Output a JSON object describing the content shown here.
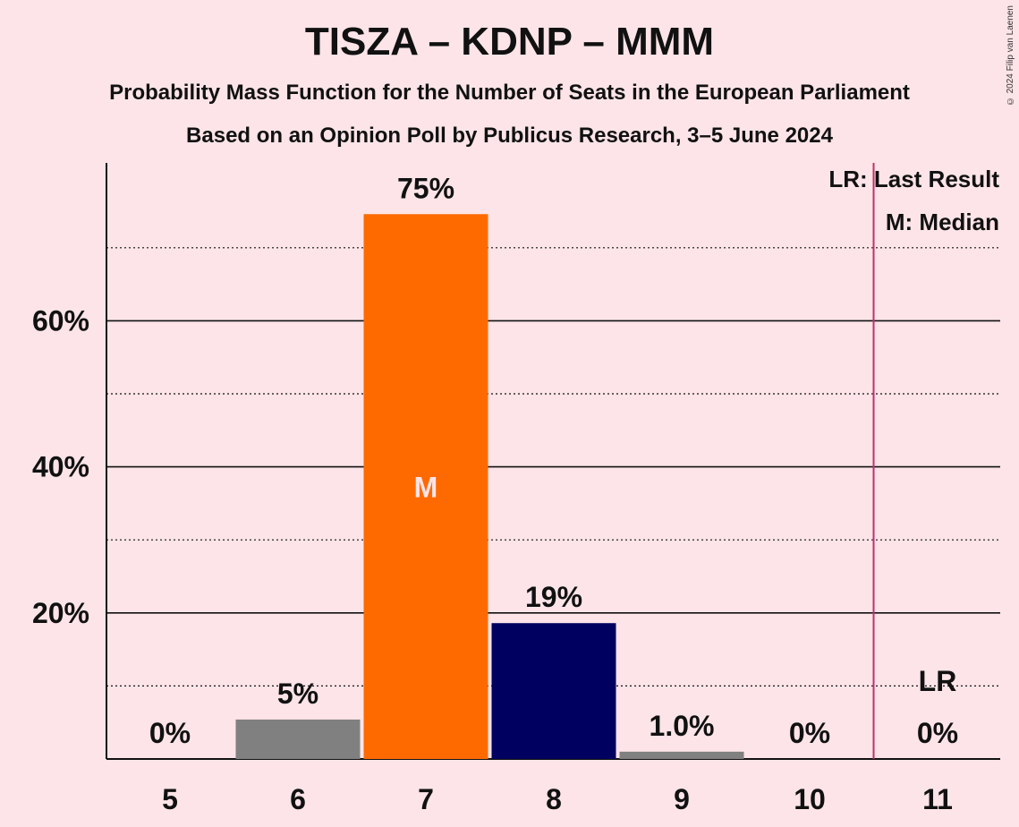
{
  "chart_data": {
    "type": "bar",
    "title": "TISZA – KDNP – MMM",
    "subtitle": "Probability Mass Function for the Number of Seats in the European Parliament",
    "subtitle2": "Based on an Opinion Poll by Publicus Research, 3–5 June 2024",
    "copyright": "© 2024 Filip van Laenen",
    "categories": [
      "5",
      "6",
      "7",
      "8",
      "9",
      "10",
      "11"
    ],
    "values": [
      0,
      5.4,
      74.6,
      18.6,
      1.0,
      0,
      0
    ],
    "labels": [
      "0%",
      "5%",
      "75%",
      "19%",
      "1.0%",
      "0%",
      "0%"
    ],
    "bar_colors": [
      "#808080",
      "#808080",
      "#ff6a00",
      "#000060",
      "#808080",
      "#808080",
      "#808080"
    ],
    "ylim": [
      0,
      80
    ],
    "yticks": [
      20,
      40,
      60
    ],
    "ytick_labels": [
      "20%",
      "40%",
      "60%"
    ],
    "minor_gridlines": [
      10,
      30,
      50,
      70
    ],
    "median_category": "7",
    "median_marker": "M",
    "last_result_category": "11",
    "last_result_marker": "LR",
    "last_result_line_color": "#c0306a",
    "legend": [
      "LR: Last Result",
      "M: Median"
    ],
    "legend_placement": "top-right"
  }
}
